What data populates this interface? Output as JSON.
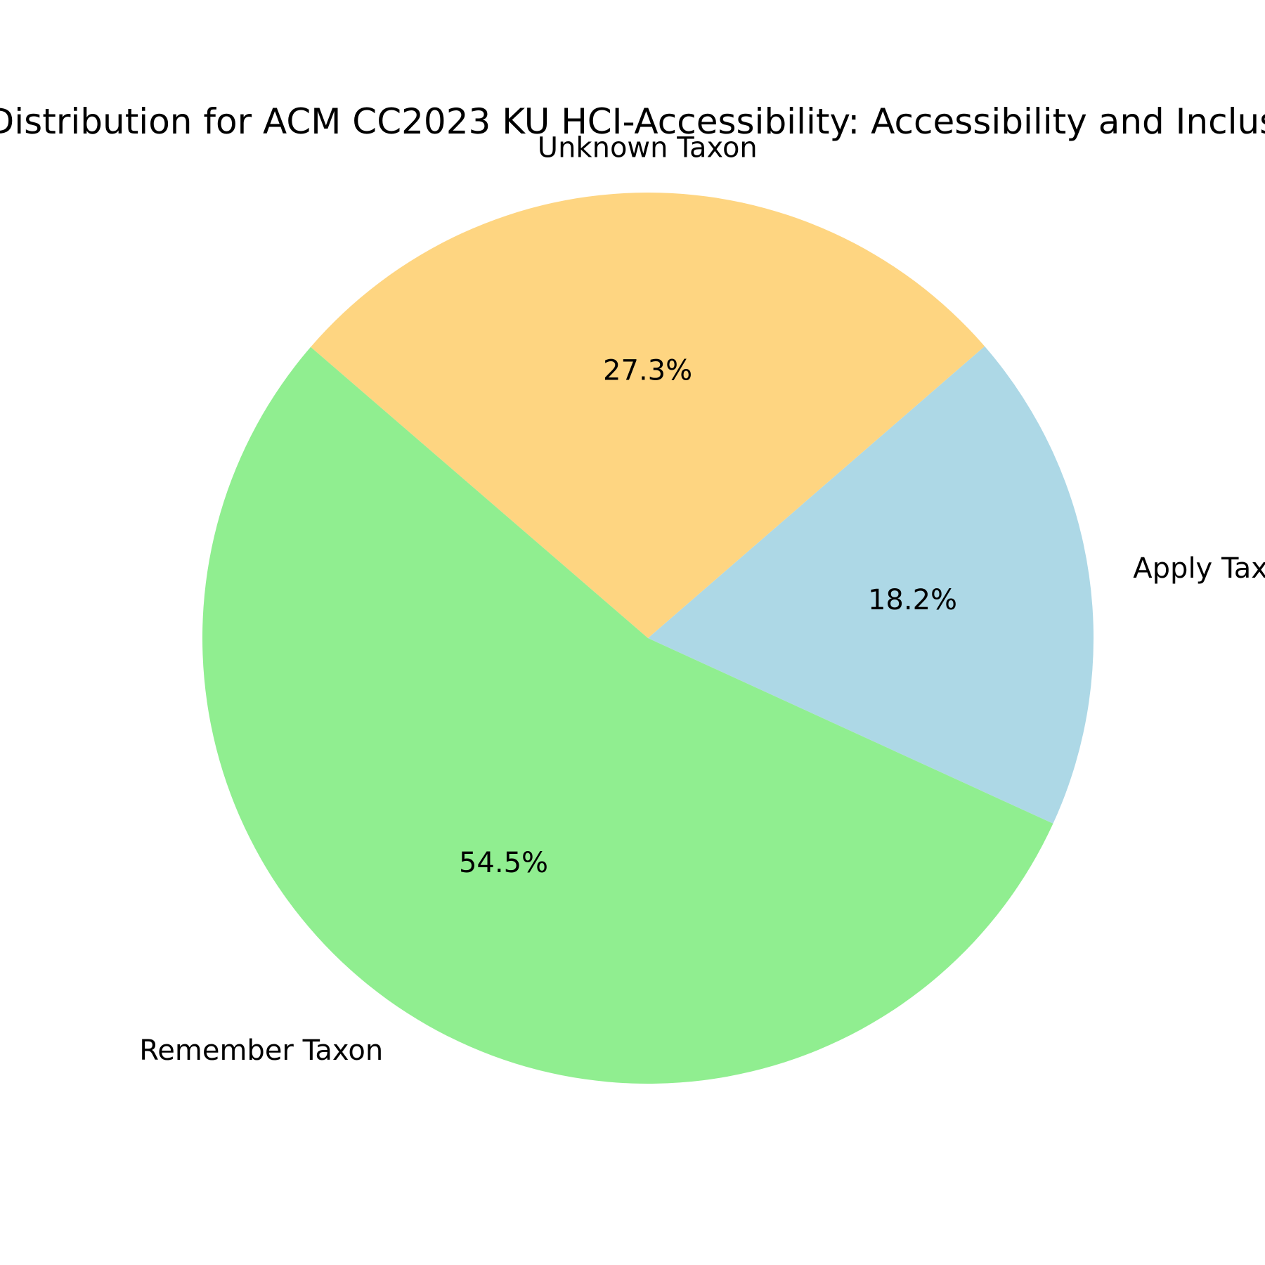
{
  "chart_data": {
    "type": "pie",
    "title": "Distribution for ACM CC2023 KU HCI-Accessibility: Accessibility and Inclus",
    "slices": [
      {
        "label": "Apply Tax",
        "percent_label": "18.2%",
        "value": 18.2,
        "color": "#add8e6"
      },
      {
        "label": "Unknown Taxon",
        "percent_label": "27.3%",
        "value": 27.3,
        "color": "#fed581"
      },
      {
        "label": "Remember Taxon",
        "percent_label": "54.5%",
        "value": 54.5,
        "color": "#90ee90"
      }
    ],
    "start_angle_deg": -24.6,
    "direction": "counterclockwise",
    "legend": "none"
  }
}
